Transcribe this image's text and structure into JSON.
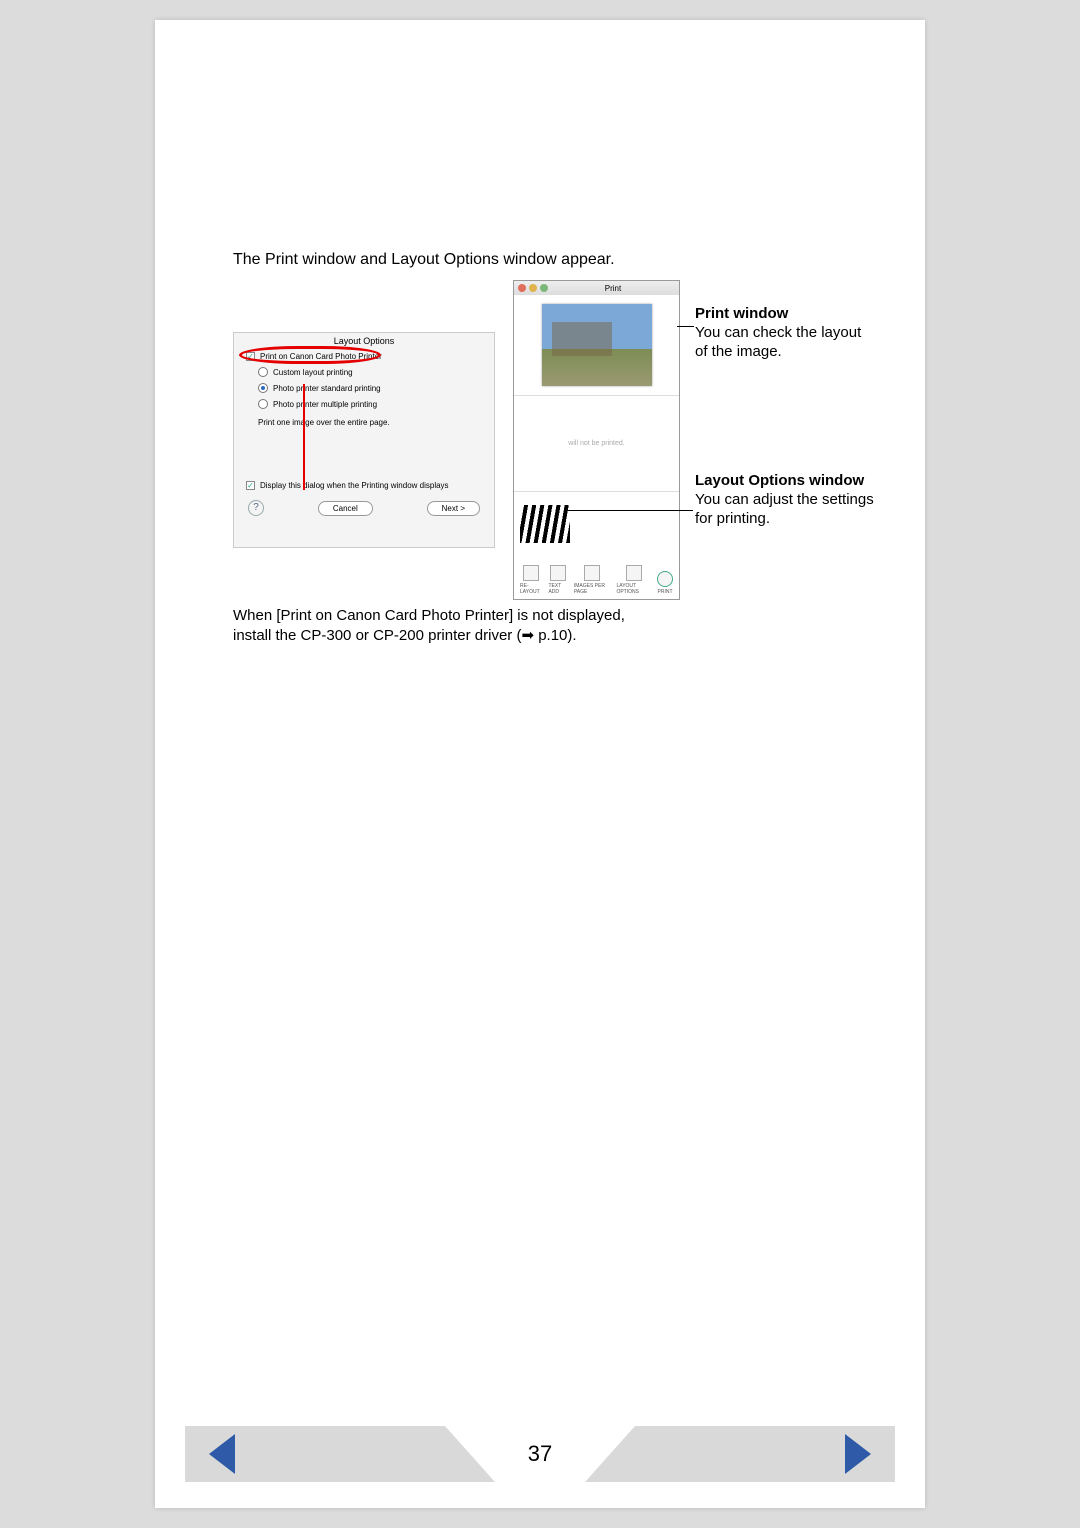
{
  "intro_text": "The Print window and Layout Options window appear.",
  "layout_dialog": {
    "title": "Layout Options",
    "option_canon": "Print on Canon Card Photo Printer",
    "option_custom": "Custom layout printing",
    "option_standard": "Photo printer standard printing",
    "option_multiple": "Photo printer multiple printing",
    "description": "Print one image over the entire page.",
    "display_checkbox": "Display this dialog when the Printing window displays",
    "cancel": "Cancel",
    "next": "Next  >"
  },
  "print_window": {
    "title": "Print",
    "will_not_print": "will not be printed.",
    "toolbar": {
      "relayout": "RE-LAYOUT",
      "textadd": "TEXT ADD",
      "perpage": "IMAGES PER PAGE",
      "layoutopt": "LAYOUT OPTIONS",
      "print": "PRINT"
    }
  },
  "annotations": {
    "print_title": "Print window",
    "print_body": "You can check the layout of the image.",
    "layout_title": "Layout Options window",
    "layout_body": "You can adjust the settings for printing."
  },
  "footnote_line1": "When [Print on Canon Card Photo Printer] is not displayed,",
  "footnote_line2_a": "install the CP-300 or CP-200 printer driver (",
  "footnote_line2_b": " p.10).",
  "page_number": "37"
}
